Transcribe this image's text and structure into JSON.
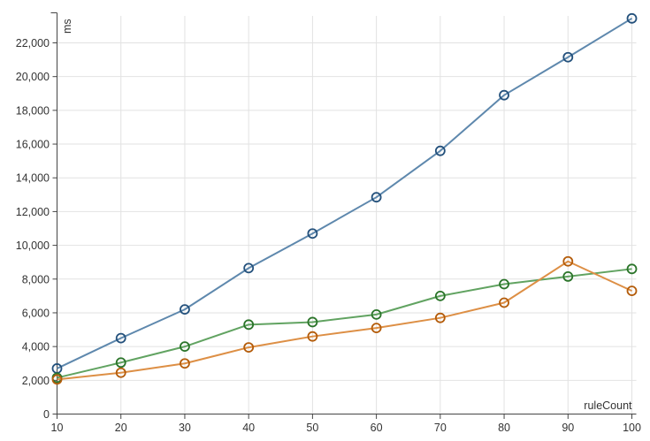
{
  "chart_data": {
    "type": "line",
    "title": "",
    "xlabel": "ruleCount",
    "ylabel": "ms",
    "x": [
      10,
      20,
      30,
      40,
      50,
      60,
      70,
      80,
      90,
      100
    ],
    "x_tick_labels": [
      "10",
      "20",
      "30",
      "40",
      "50",
      "60",
      "70",
      "80",
      "90",
      "100"
    ],
    "y_ticks": [
      0,
      2000,
      4000,
      6000,
      8000,
      10000,
      12000,
      14000,
      16000,
      18000,
      20000,
      22000
    ],
    "y_tick_labels": [
      "0",
      "2,000",
      "4,000",
      "6,000",
      "8,000",
      "10,000",
      "12,000",
      "14,000",
      "16,000",
      "18,000",
      "20,000",
      "22,000"
    ],
    "xlim": [
      10,
      100
    ],
    "ylim": [
      0,
      23500
    ],
    "grid": true,
    "legend_position": "none",
    "marker_style": "open-circle",
    "series": [
      {
        "name": "blue-series",
        "line_color": "#5e88ad",
        "marker_color": "#24517c",
        "values": [
          2700,
          4500,
          6200,
          8650,
          10700,
          12850,
          15600,
          18900,
          21150,
          23450
        ]
      },
      {
        "name": "green-series",
        "line_color": "#61a361",
        "marker_color": "#2a7429",
        "values": [
          2150,
          3050,
          4000,
          5300,
          5450,
          5900,
          7000,
          7700,
          8150,
          8600
        ]
      },
      {
        "name": "orange-series",
        "line_color": "#dd8f45",
        "marker_color": "#b45c0a",
        "values": [
          2050,
          2450,
          3000,
          3950,
          4600,
          5100,
          5700,
          6600,
          9050,
          7300
        ]
      }
    ],
    "colors": {
      "background": "#ffffff",
      "gridline": "#e2e2e2",
      "axis": "#454545",
      "tick_label": "#333333"
    }
  }
}
